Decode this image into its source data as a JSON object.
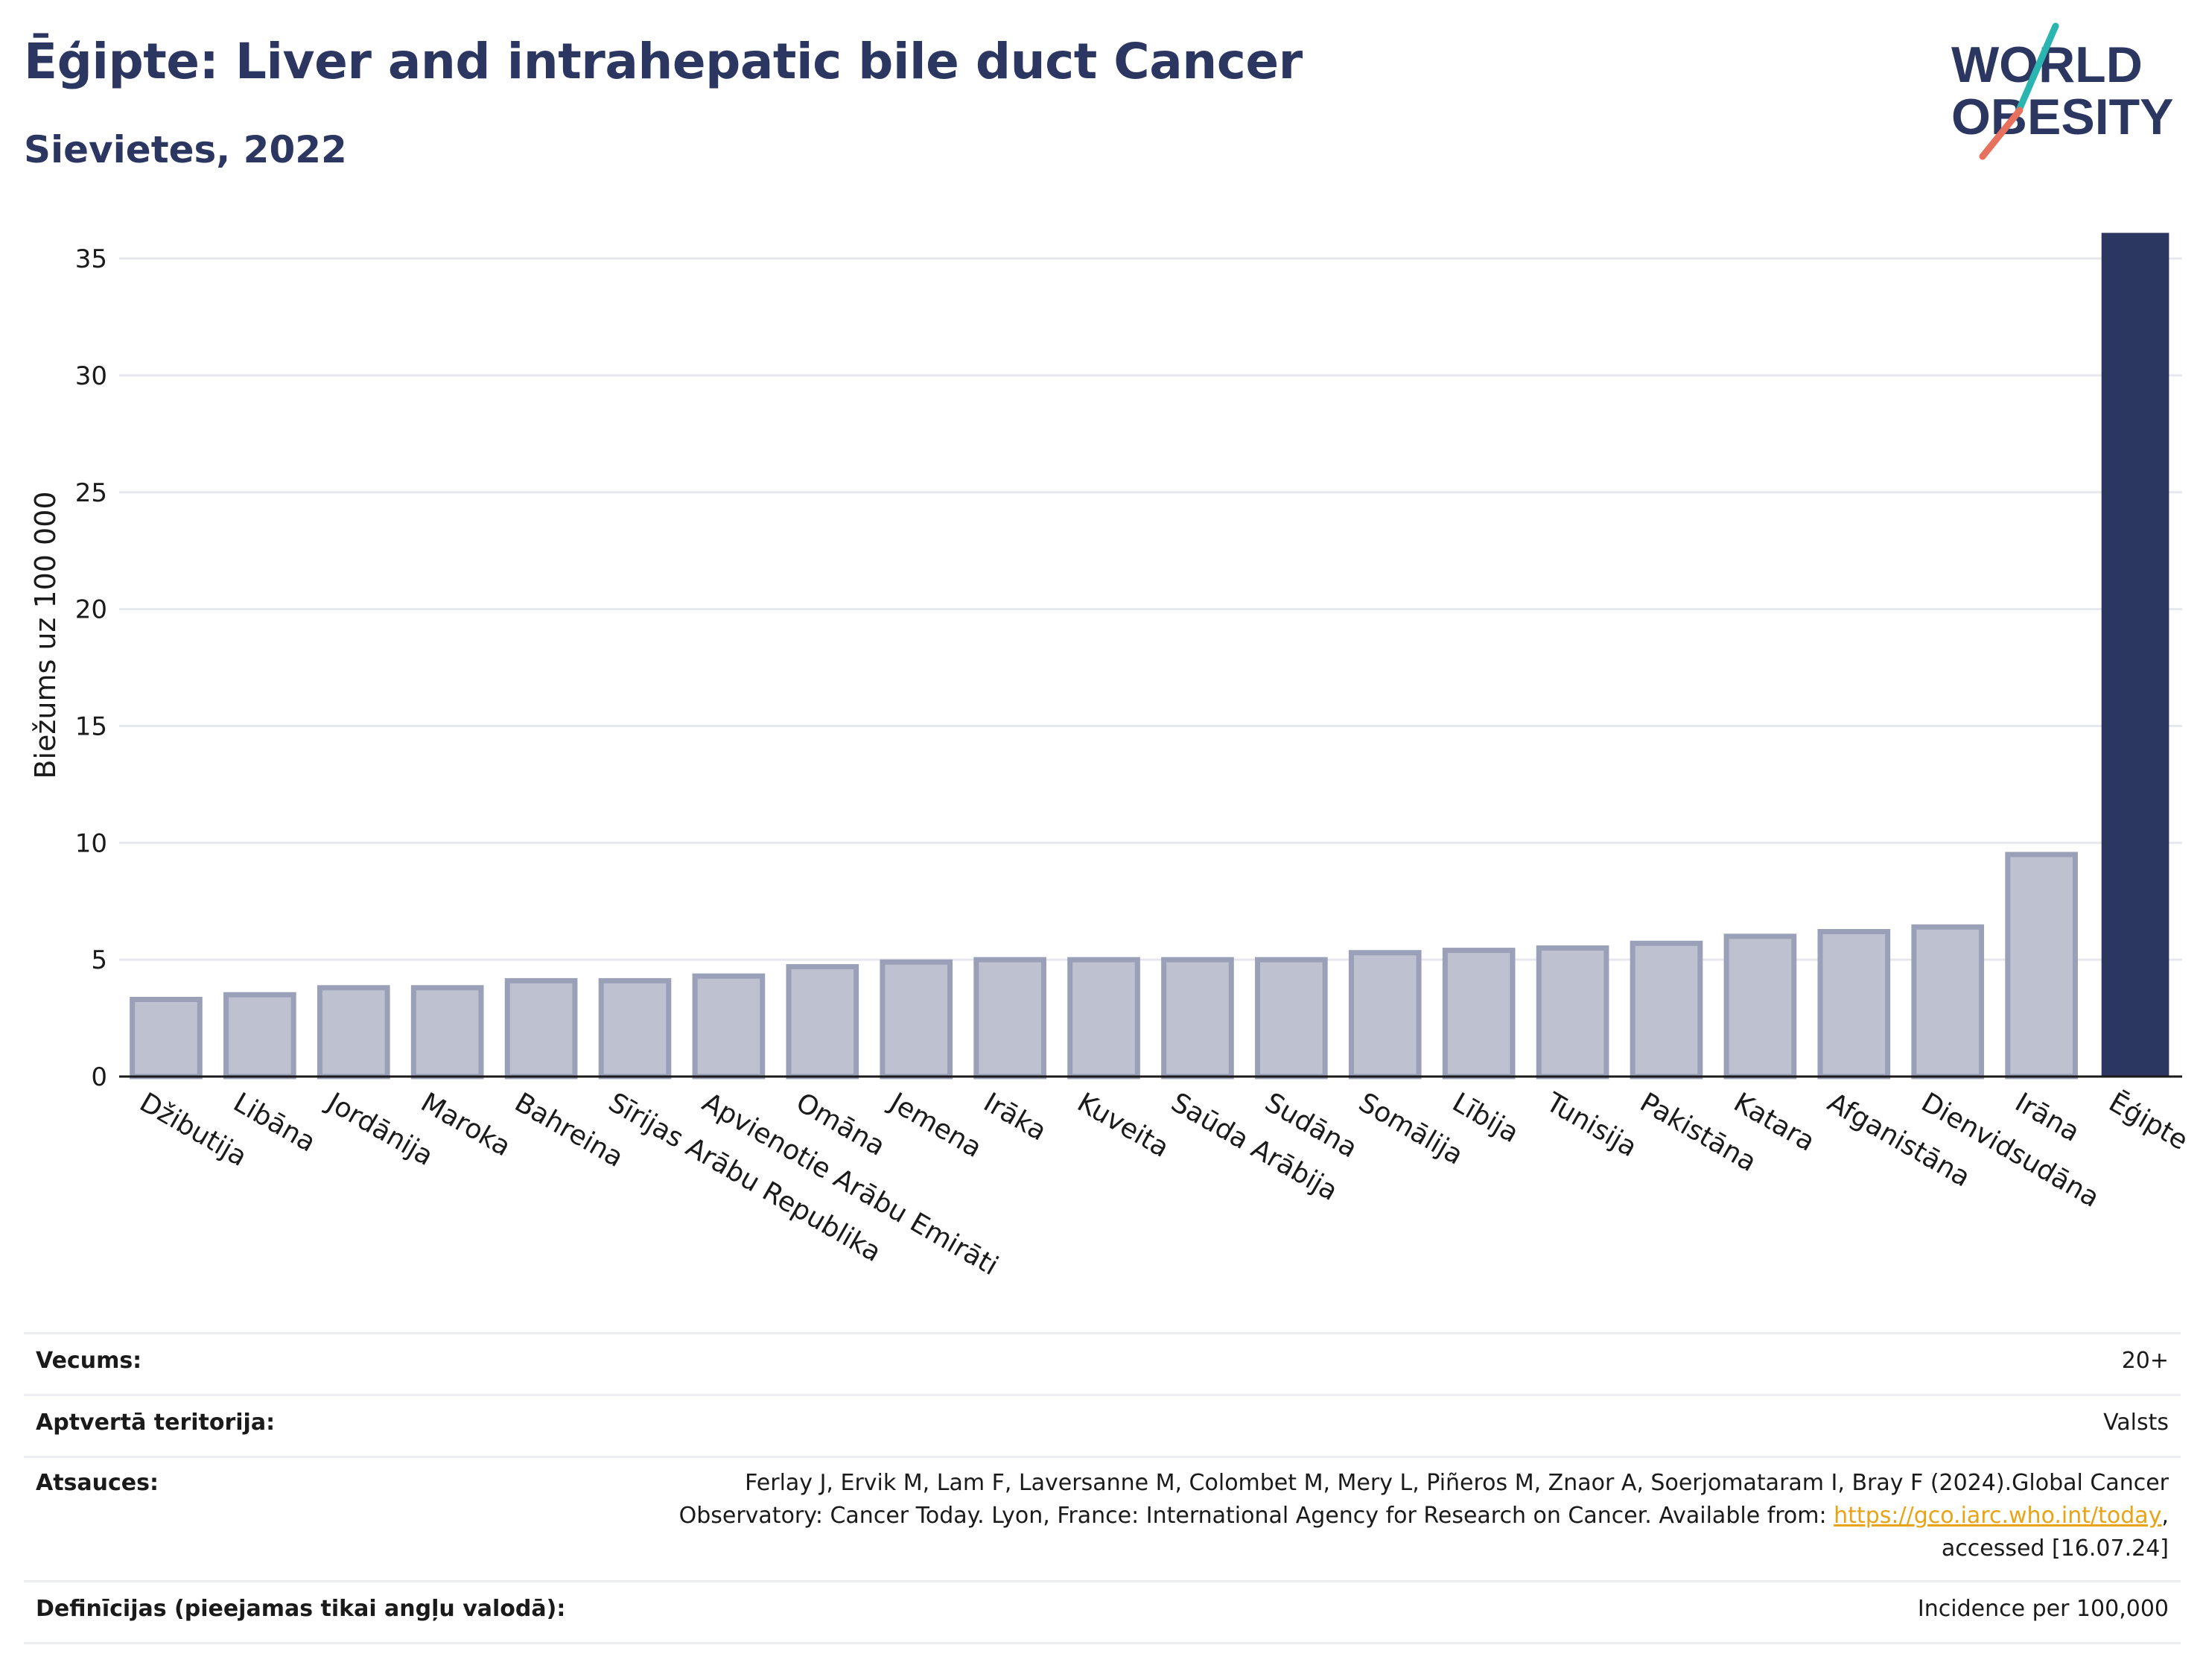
{
  "header": {
    "title": "Ēģipte: Liver and intrahepatic bile duct Cancer",
    "subtitle": "Sievietes, 2022"
  },
  "logo": {
    "line1": "WORLD",
    "line2": "OBESITY",
    "colors": {
      "text": "#2b3661",
      "slash_top": "#2bb5b0",
      "slash_bottom": "#e8705f"
    }
  },
  "chart_data": {
    "type": "bar",
    "title": "Ēģipte: Liver and intrahepatic bile duct Cancer",
    "subtitle": "Sievietes, 2022",
    "ylabel": "Biežums uz 100 000",
    "xlabel": "",
    "ylim": [
      0,
      36.5
    ],
    "yticks": [
      0,
      5,
      10,
      15,
      20,
      25,
      30,
      35
    ],
    "grid": true,
    "categories": [
      "Džibutija",
      "Libāna",
      "Jordānija",
      "Maroka",
      "Bahreina",
      "Sīrijas Arābu Republika",
      "Apvienotie Arābu Emirāti",
      "Omāna",
      "Jemena",
      "Irāka",
      "Kuveita",
      "Saūda Arābija",
      "Sudāna",
      "Somālija",
      "Lībija",
      "Tunisija",
      "Pakistāna",
      "Katara",
      "Afganistāna",
      "Dienvidsudāna",
      "Irāna",
      "Ēģipte"
    ],
    "values": [
      3.3,
      3.5,
      3.8,
      3.8,
      4.1,
      4.1,
      4.3,
      4.7,
      4.9,
      5.0,
      5.0,
      5.0,
      5.0,
      5.3,
      5.4,
      5.5,
      5.7,
      6.0,
      6.2,
      6.4,
      9.5,
      36.1
    ],
    "highlight": "Ēģipte",
    "colors": {
      "highlight": "#2b3661",
      "other_fill": "#bdc1d0",
      "other_stroke": "#9aa0b8",
      "grid": "#e6e8ee",
      "axis": "#1a1a1a"
    }
  },
  "meta": {
    "age_label": "Vecums:",
    "age_value": "20+",
    "coverage_label": "Aptvertā teritorija:",
    "coverage_value": "Valsts",
    "refs_label": "Atsauces:",
    "refs_line1": "Ferlay J, Ervik M, Lam F, Laversanne M, Colombet M, Mery L, Piñeros M, Znaor A, Soerjomataram I, Bray F (2024).Global Cancer",
    "refs_line2_prefix": "Observatory: Cancer Today. Lyon, France: International Agency for Research on Cancer. Available from: ",
    "refs_link": "https://gco.iarc.who.int/today",
    "refs_line2_suffix": ",",
    "refs_line3": "accessed [16.07.24]",
    "defs_label": "Definīcijas (pieejamas tikai angļu valodā):",
    "defs_value": "Incidence per 100,000"
  }
}
